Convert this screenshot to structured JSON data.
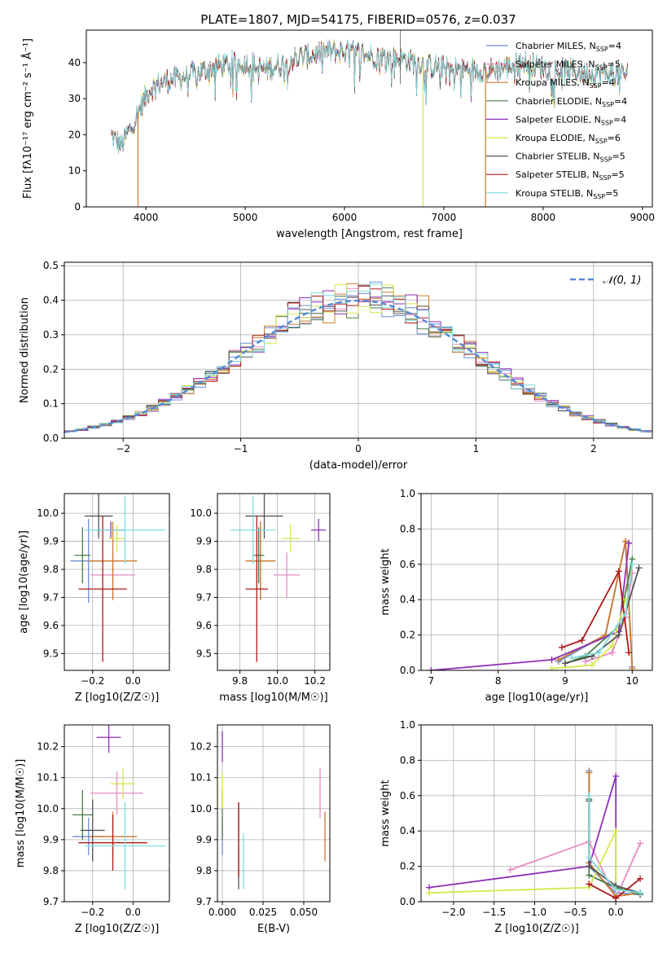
{
  "title": "PLATE=1807, MJD=54175, FIBERID=0576, z=0.037",
  "colors": {
    "chabrier_miles": "#6b8fd6",
    "salpeter_miles": "#e78ac3",
    "kroupa_miles": "#cc7a2e",
    "chabrier_elodie": "#4a7d4a",
    "salpeter_elodie": "#8e2fb8",
    "kroupa_elodie": "#d4e84c",
    "chabrier_stelib": "#555555",
    "salpeter_stelib": "#b01818",
    "kroupa_stelib": "#7fdce0",
    "normal_curve": "#5588d8",
    "grid": "#b0b0b0"
  },
  "chart_data": [
    {
      "id": "spectrum",
      "type": "line",
      "xlabel": "wavelength [Angstrom, rest frame]",
      "ylabel": "Flux [fλ10⁻¹⁷ erg cm⁻² s⁻¹ Å⁻¹]",
      "xlim": [
        3400,
        9100
      ],
      "ylim": [
        0,
        49
      ],
      "xticks": [
        "4000",
        "5000",
        "6000",
        "7000",
        "8000",
        "9000"
      ],
      "yticks": [
        "0",
        "10",
        "20",
        "30",
        "40"
      ],
      "grid": false,
      "legend_position": "top-right",
      "legend": [
        "Chabrier MILES, N_SSP=4",
        "Salpeter MILES, N_SSP=5",
        "Kroupa MILES, N_SSP=4",
        "Chabrier ELODIE, N_SSP=4",
        "Salpeter ELODIE, N_SSP=4",
        "Kroupa ELODIE, N_SSP=6",
        "Chabrier STELIB, N_SSP=5",
        "Salpeter STELIB, N_SSP=5",
        "Kroupa STELIB, N_SSP=5"
      ],
      "continuum": [
        [
          3650,
          20
        ],
        [
          3750,
          17
        ],
        [
          3850,
          22
        ],
        [
          3950,
          28
        ],
        [
          4050,
          33
        ],
        [
          4200,
          35
        ],
        [
          4400,
          36
        ],
        [
          4700,
          39
        ],
        [
          5000,
          40
        ],
        [
          5200,
          38
        ],
        [
          5500,
          41
        ],
        [
          5800,
          43
        ],
        [
          6000,
          43
        ],
        [
          6300,
          42
        ],
        [
          6600,
          41
        ],
        [
          6900,
          39
        ],
        [
          7200,
          38
        ],
        [
          7500,
          38
        ],
        [
          7800,
          40
        ],
        [
          8100,
          38
        ],
        [
          8500,
          37
        ],
        [
          8850,
          37
        ]
      ],
      "spikes_to_zero": [
        3920,
        6790,
        7420
      ]
    },
    {
      "id": "residuals",
      "type": "line",
      "xlabel": "(data-model)/error",
      "ylabel": "Normed distribution",
      "xlim": [
        -2.5,
        2.5
      ],
      "ylim": [
        0,
        0.51
      ],
      "xticks": [
        "−2",
        "−1",
        "0",
        "1",
        "2"
      ],
      "yticks": [
        "0.0",
        "0.1",
        "0.2",
        "0.3",
        "0.4",
        "0.5"
      ],
      "grid": true,
      "legend_position": "top-right",
      "legend_label": "𝒩(0, 1)",
      "bin_width": 0.1
    },
    {
      "id": "age_vs_z",
      "type": "scatter",
      "xlabel": "Z [log10(Z/Z☉)]",
      "ylabel": "age  [log10(age/yr)]",
      "xlim": [
        -0.34,
        0.18
      ],
      "ylim": [
        9.44,
        10.07
      ],
      "xticks": [
        "−0.2",
        "0.0"
      ],
      "xtick_values": [
        -0.2,
        0.0
      ],
      "yticks": [
        "9.5",
        "9.6",
        "9.7",
        "9.8",
        "9.9",
        "10.0"
      ],
      "ytick_values": [
        9.5,
        9.6,
        9.7,
        9.8,
        9.9,
        10.0
      ],
      "grid": true,
      "points": [
        {
          "c": "chabrier_miles",
          "x": -0.22,
          "y": 9.83,
          "xe": 0.09,
          "ye": 0.15
        },
        {
          "c": "salpeter_miles",
          "x": -0.1,
          "y": 9.78,
          "xe": 0.11,
          "ye": 0.08
        },
        {
          "c": "kroupa_miles",
          "x": -0.1,
          "y": 9.83,
          "xe": 0.12,
          "ye": 0.14
        },
        {
          "c": "chabrier_elodie",
          "x": -0.25,
          "y": 9.85,
          "xe": 0.04,
          "ye": 0.1
        },
        {
          "c": "salpeter_elodie",
          "x": -0.11,
          "y": 9.94,
          "xe": 0.07,
          "ye": 0.03
        },
        {
          "c": "kroupa_elodie",
          "x": -0.08,
          "y": 9.91,
          "xe": 0.04,
          "ye": 0.05
        },
        {
          "c": "chabrier_stelib",
          "x": -0.17,
          "y": 9.99,
          "xe": 0.07,
          "ye": 0.08
        },
        {
          "c": "salpeter_stelib",
          "x": -0.15,
          "y": 9.73,
          "xe": 0.12,
          "ye": 0.26
        },
        {
          "c": "kroupa_stelib",
          "x": -0.04,
          "y": 9.94,
          "xe": 0.2,
          "ye": 0.12
        }
      ]
    },
    {
      "id": "age_vs_mass",
      "type": "scatter",
      "xlabel": "mass [log10(M/M☉)]",
      "ylabel": "",
      "xlim": [
        9.68,
        10.28
      ],
      "ylim": [
        9.44,
        10.07
      ],
      "xticks": [
        "9.8",
        "10.0",
        "10.2"
      ],
      "xtick_values": [
        9.8,
        10.0,
        10.2
      ],
      "yticks": [
        "9.5",
        "9.6",
        "9.7",
        "9.8",
        "9.9",
        "10.0"
      ],
      "ytick_values": [
        9.5,
        9.6,
        9.7,
        9.8,
        9.9,
        10.0
      ],
      "grid": true,
      "points": [
        {
          "c": "chabrier_miles",
          "x": 9.91,
          "y": 9.83,
          "xe": 0.06,
          "ye": 0.14
        },
        {
          "c": "salpeter_miles",
          "x": 10.05,
          "y": 9.78,
          "xe": 0.07,
          "ye": 0.08
        },
        {
          "c": "kroupa_miles",
          "x": 9.91,
          "y": 9.83,
          "xe": 0.08,
          "ye": 0.14
        },
        {
          "c": "chabrier_elodie",
          "x": 9.9,
          "y": 9.85,
          "xe": 0.03,
          "ye": 0.1
        },
        {
          "c": "salpeter_elodie",
          "x": 10.22,
          "y": 9.94,
          "xe": 0.04,
          "ye": 0.04
        },
        {
          "c": "kroupa_elodie",
          "x": 10.07,
          "y": 9.91,
          "xe": 0.05,
          "ye": 0.05
        },
        {
          "c": "chabrier_stelib",
          "x": 9.93,
          "y": 9.99,
          "xe": 0.1,
          "ye": 0.08
        },
        {
          "c": "salpeter_stelib",
          "x": 9.89,
          "y": 9.73,
          "xe": 0.06,
          "ye": 0.26
        },
        {
          "c": "kroupa_stelib",
          "x": 9.87,
          "y": 9.94,
          "xe": 0.12,
          "ye": 0.12
        }
      ]
    },
    {
      "id": "weight_vs_age",
      "type": "line",
      "xlabel": "age  [log10(age/yr)]",
      "ylabel": "mass weight",
      "xlim": [
        6.85,
        10.3
      ],
      "ylim": [
        0,
        1
      ],
      "xticks": [
        "7",
        "8",
        "9",
        "10"
      ],
      "xtick_values": [
        7,
        8,
        9,
        10
      ],
      "yticks": [
        "0.0",
        "0.2",
        "0.4",
        "0.6",
        "0.8",
        "1.0"
      ],
      "ytick_values": [
        0,
        0.2,
        0.4,
        0.6,
        0.8,
        1.0
      ],
      "grid": true,
      "series": [
        {
          "c": "chabrier_miles",
          "x": [
            8.9,
            9.6,
            9.9,
            10.0
          ],
          "y": [
            0.05,
            0.2,
            0.73,
            0.02
          ]
        },
        {
          "c": "salpeter_miles",
          "x": [
            9.3,
            9.7,
            9.9,
            10.0
          ],
          "y": [
            0.05,
            0.1,
            0.3,
            0.55
          ]
        },
        {
          "c": "kroupa_miles",
          "x": [
            8.9,
            9.6,
            9.9,
            10.0
          ],
          "y": [
            0.06,
            0.2,
            0.73,
            0.01
          ]
        },
        {
          "c": "chabrier_elodie",
          "x": [
            9.0,
            9.3,
            9.8,
            10.0
          ],
          "y": [
            0.04,
            0.08,
            0.25,
            0.63
          ]
        },
        {
          "c": "salpeter_elodie",
          "x": [
            7.0,
            8.8,
            9.8,
            9.95
          ],
          "y": [
            0.0,
            0.06,
            0.22,
            0.72
          ]
        },
        {
          "c": "kroupa_elodie",
          "x": [
            8.8,
            9.4,
            9.7,
            9.9
          ],
          "y": [
            0.01,
            0.03,
            0.14,
            0.4
          ]
        },
        {
          "c": "chabrier_stelib",
          "x": [
            9.0,
            9.4,
            9.8,
            10.1
          ],
          "y": [
            0.04,
            0.08,
            0.2,
            0.58
          ]
        },
        {
          "c": "salpeter_stelib",
          "x": [
            8.95,
            9.25,
            9.8,
            9.95
          ],
          "y": [
            0.13,
            0.17,
            0.56,
            0.1
          ]
        },
        {
          "c": "kroupa_stelib",
          "x": [
            9.1,
            9.5,
            9.9,
            10.0
          ],
          "y": [
            0.07,
            0.1,
            0.32,
            0.6
          ]
        }
      ]
    },
    {
      "id": "mass_vs_z",
      "type": "scatter",
      "xlabel": "Z [log10(Z/Z☉)]",
      "ylabel": "mass [log10(M/M☉)]",
      "xlim": [
        -0.34,
        0.18
      ],
      "ylim": [
        9.7,
        10.27
      ],
      "xticks": [
        "−0.2",
        "0.0"
      ],
      "xtick_values": [
        -0.2,
        0.0
      ],
      "yticks": [
        "9.7",
        "9.8",
        "9.9",
        "10.0",
        "10.1",
        "10.2"
      ],
      "ytick_values": [
        9.7,
        9.8,
        9.9,
        10.0,
        10.1,
        10.2
      ],
      "grid": true,
      "points": [
        {
          "c": "chabrier_miles",
          "x": -0.22,
          "y": 9.91,
          "xe": 0.08,
          "ye": 0.06
        },
        {
          "c": "salpeter_miles",
          "x": -0.08,
          "y": 10.05,
          "xe": 0.13,
          "ye": 0.07
        },
        {
          "c": "kroupa_miles",
          "x": -0.1,
          "y": 9.91,
          "xe": 0.12,
          "ye": 0.08
        },
        {
          "c": "chabrier_elodie",
          "x": -0.25,
          "y": 9.98,
          "xe": 0.05,
          "ye": 0.08
        },
        {
          "c": "salpeter_elodie",
          "x": -0.12,
          "y": 10.23,
          "xe": 0.06,
          "ye": 0.05
        },
        {
          "c": "kroupa_elodie",
          "x": -0.05,
          "y": 10.08,
          "xe": 0.06,
          "ye": 0.05
        },
        {
          "c": "chabrier_stelib",
          "x": -0.2,
          "y": 9.93,
          "xe": 0.06,
          "ye": 0.1
        },
        {
          "c": "salpeter_stelib",
          "x": -0.1,
          "y": 9.89,
          "xe": 0.17,
          "ye": 0.09
        },
        {
          "c": "kroupa_stelib",
          "x": -0.04,
          "y": 9.88,
          "xe": 0.2,
          "ye": 0.14
        }
      ]
    },
    {
      "id": "mass_vs_ebv",
      "type": "scatter",
      "xlabel": "E(B-V)",
      "ylabel": "",
      "xlim": [
        -0.003,
        0.066
      ],
      "ylim": [
        9.7,
        10.27
      ],
      "xticks": [
        "0.000",
        "0.025",
        "0.050"
      ],
      "xtick_values": [
        0.0,
        0.025,
        0.05
      ],
      "yticks": [
        "9.7",
        "9.8",
        "9.9",
        "10.0",
        "10.1",
        "10.2"
      ],
      "ytick_values": [
        9.7,
        9.8,
        9.9,
        10.0,
        10.1,
        10.2
      ],
      "grid": true,
      "points": [
        {
          "c": "chabrier_miles",
          "x": 0.0,
          "y": 9.91,
          "xe": 0,
          "ye": 0.06
        },
        {
          "c": "salpeter_miles",
          "x": 0.06,
          "y": 10.05,
          "xe": 0,
          "ye": 0.08
        },
        {
          "c": "kroupa_miles",
          "x": 0.063,
          "y": 9.91,
          "xe": 0,
          "ye": 0.08
        },
        {
          "c": "chabrier_elodie",
          "x": 0.0,
          "y": 9.98,
          "xe": 0,
          "ye": 0.08
        },
        {
          "c": "salpeter_elodie",
          "x": 0.0,
          "y": 10.2,
          "xe": 0,
          "ye": 0.05
        },
        {
          "c": "kroupa_elodie",
          "x": 0.0,
          "y": 10.06,
          "xe": 0,
          "ye": 0.06
        },
        {
          "c": "chabrier_stelib",
          "x": 0.01,
          "y": 9.88,
          "xe": 0,
          "ye": 0.14
        },
        {
          "c": "salpeter_stelib",
          "x": 0.01,
          "y": 9.9,
          "xe": 0,
          "ye": 0.12
        },
        {
          "c": "kroupa_stelib",
          "x": 0.013,
          "y": 9.83,
          "xe": 0,
          "ye": 0.09
        }
      ]
    },
    {
      "id": "weight_vs_z",
      "type": "line",
      "xlabel": "Z [log10(Z/Z☉)]",
      "ylabel": "mass weight",
      "xlim": [
        -2.4,
        0.45
      ],
      "ylim": [
        0,
        1
      ],
      "xticks": [
        "−2.0",
        "−1.5",
        "−1.0",
        "−0.5",
        "0.0"
      ],
      "xtick_values": [
        -2.0,
        -1.5,
        -1.0,
        -0.5,
        0.0
      ],
      "yticks": [
        "0.0",
        "0.2",
        "0.4",
        "0.6",
        "0.8",
        "1.0"
      ],
      "ytick_values": [
        0,
        0.2,
        0.4,
        0.6,
        0.8,
        1.0
      ],
      "grid": true,
      "series": [
        {
          "c": "chabrier_miles",
          "x": [
            -0.33,
            -0.33,
            0.0,
            0.3
          ],
          "y": [
            0.74,
            0.2,
            0.05,
            0.04
          ]
        },
        {
          "c": "salpeter_miles",
          "x": [
            -1.3,
            -0.33,
            0.0,
            0.3
          ],
          "y": [
            0.18,
            0.34,
            0.02,
            0.33
          ]
        },
        {
          "c": "kroupa_miles",
          "x": [
            -0.33,
            -0.33,
            0.0,
            0.3
          ],
          "y": [
            0.73,
            0.22,
            0.03,
            0.05
          ]
        },
        {
          "c": "chabrier_elodie",
          "x": [
            -0.33,
            -0.33,
            0.0,
            0.3
          ],
          "y": [
            0.58,
            0.15,
            0.08,
            0.04
          ]
        },
        {
          "c": "salpeter_elodie",
          "x": [
            -2.3,
            -0.33,
            0.0,
            0.0
          ],
          "y": [
            0.08,
            0.2,
            0.71,
            0.02
          ]
        },
        {
          "c": "kroupa_elodie",
          "x": [
            -2.3,
            -0.33,
            0.0,
            0.0
          ],
          "y": [
            0.05,
            0.08,
            0.4,
            0.02
          ]
        },
        {
          "c": "chabrier_stelib",
          "x": [
            -0.33,
            -0.33,
            0.0,
            0.3
          ],
          "y": [
            0.57,
            0.2,
            0.09,
            0.05
          ]
        },
        {
          "c": "salpeter_stelib",
          "x": [
            -0.33,
            0.0,
            0.3
          ],
          "y": [
            0.1,
            0.02,
            0.13
          ]
        },
        {
          "c": "kroupa_stelib",
          "x": [
            -0.33,
            -0.33,
            0.0,
            0.3
          ],
          "y": [
            0.6,
            0.25,
            0.07,
            0.05
          ]
        }
      ]
    }
  ]
}
